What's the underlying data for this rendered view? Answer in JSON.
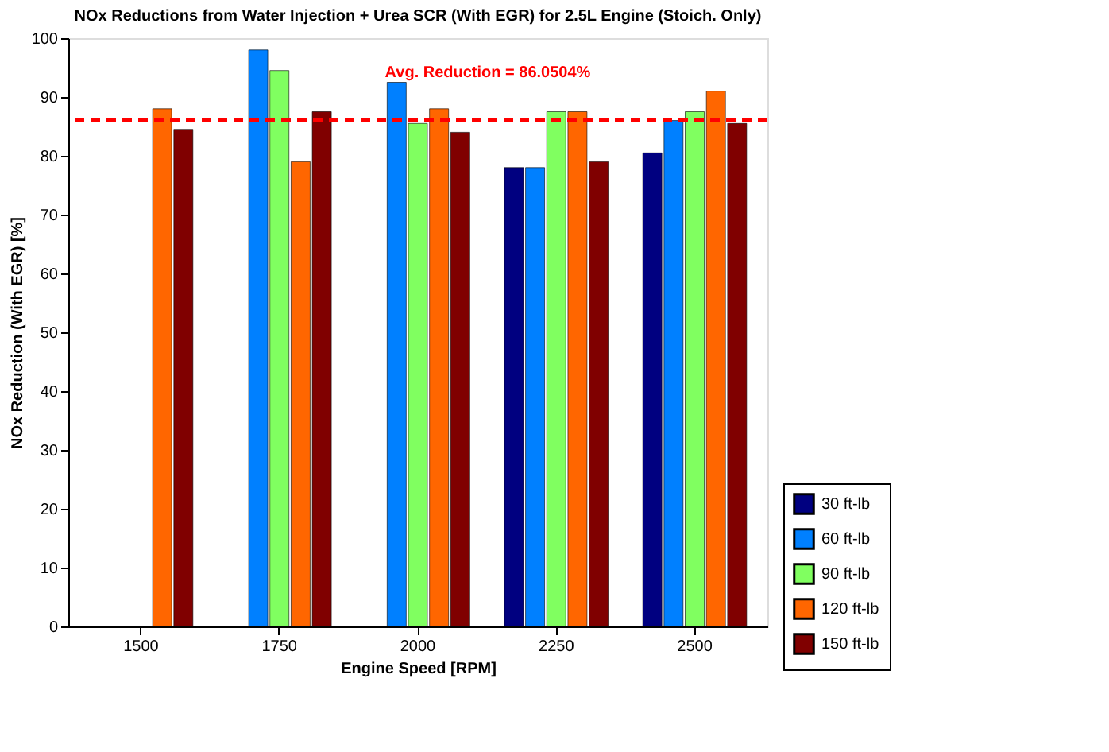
{
  "chart_data": {
    "type": "bar",
    "title": "NOx Reductions from Water Injection + Urea SCR (With EGR) for 2.5L Engine (Stoich. Only)",
    "xlabel": "Engine Speed [RPM]",
    "ylabel": "NOx Reduction (With EGR) [%]",
    "categories": [
      "1500",
      "1750",
      "2000",
      "2250",
      "2500"
    ],
    "series": [
      {
        "name": "30 ft-lb",
        "color": "#000080",
        "values": [
          null,
          null,
          null,
          78,
          80.5
        ]
      },
      {
        "name": "60 ft-lb",
        "color": "#0080ff",
        "values": [
          null,
          98,
          92.5,
          78,
          86
        ]
      },
      {
        "name": "90 ft-lb",
        "color": "#80ff60",
        "values": [
          null,
          94.5,
          85.5,
          87.5,
          87.5
        ]
      },
      {
        "name": "120 ft-lb",
        "color": "#ff6600",
        "values": [
          88,
          79,
          88,
          87.5,
          91
        ]
      },
      {
        "name": "150 ft-lb",
        "color": "#800000",
        "values": [
          84.5,
          87.5,
          84,
          79,
          85.5
        ]
      }
    ],
    "ylim": [
      0,
      100
    ],
    "yticks": [
      0,
      10,
      20,
      30,
      40,
      50,
      60,
      70,
      80,
      90,
      100
    ],
    "grid": false,
    "legend": "bottom right",
    "ref_lines": [
      {
        "axis": "y",
        "value": 86.0504,
        "label": "Avg. Reduction = 86.0504%",
        "color": "#ff0000",
        "line_style": "dashed"
      }
    ]
  }
}
